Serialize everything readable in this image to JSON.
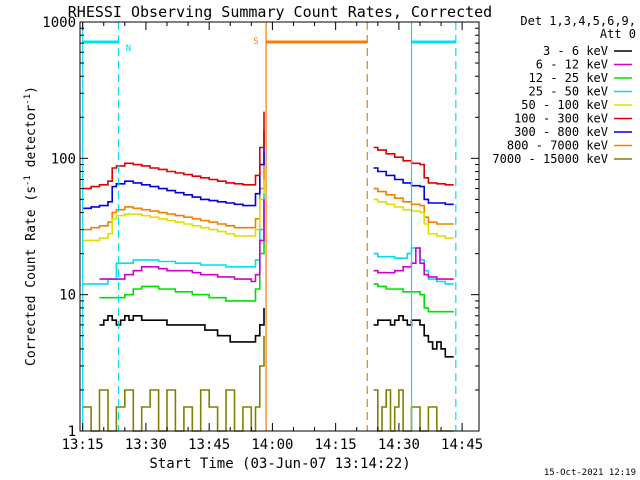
{
  "chart_data": {
    "type": "line",
    "title": "RHESSI Observing Summary Count Rates, Corrected",
    "xlabel": "Start Time (03-Jun-07 13:14:22)",
    "ylabel_main": "Corrected Count Rate (s",
    "ylabel_sup1": "-1",
    "ylabel_mid": " detector",
    "ylabel_sup2": "-1",
    "ylabel_end": ")",
    "yscale": "log",
    "ylim": [
      1,
      1000
    ],
    "xlim": [
      "13:14:22",
      "14:49:00"
    ],
    "xtick_labels": [
      "13:15",
      "13:30",
      "13:45",
      "14:00",
      "14:15",
      "14:30",
      "14:45"
    ],
    "xtick_minutes": [
      0,
      15,
      30,
      45,
      60,
      75,
      90
    ],
    "ytick_labels": [
      "1",
      "10",
      "100",
      "1000"
    ],
    "ytick_values": [
      1,
      10,
      100,
      1000
    ],
    "x_unit": "minutes after 13:15",
    "legend_header": [
      "Det 1,3,4,5,6,9,",
      "Att 0"
    ],
    "series": [
      {
        "name": "3 - 6 keV",
        "color": "#000000",
        "segments": [
          {
            "x": [
              4,
              5,
              6,
              7,
              8,
              9,
              10,
              11,
              12,
              14,
              17,
              20,
              23,
              26,
              29,
              32,
              35,
              38,
              40,
              41,
              42,
              43
            ],
            "y": [
              6,
              6.5,
              7,
              6.5,
              6,
              6.5,
              7,
              6.5,
              7,
              6.5,
              6.5,
              6,
              6,
              6,
              5.5,
              5,
              4.5,
              4.5,
              4.5,
              5,
              6,
              8
            ]
          },
          {
            "x": [
              69,
              70,
              71,
              72,
              73,
              74,
              75,
              76,
              77,
              78,
              80,
              81,
              82,
              83,
              84,
              85,
              86,
              87,
              88
            ],
            "y": [
              6,
              6.5,
              6.5,
              6.5,
              6,
              6.5,
              7,
              6.5,
              6,
              6.5,
              6,
              5,
              4.5,
              4,
              4.5,
              4,
              3.5,
              3.5,
              3.5
            ]
          }
        ]
      },
      {
        "name": "6 - 12 keV",
        "color": "#d000d0",
        "segments": [
          {
            "x": [
              4,
              6,
              8,
              10,
              12,
              14,
              16,
              18,
              20,
              22,
              24,
              26,
              28,
              30,
              32,
              34,
              36,
              38,
              40,
              41,
              42,
              43
            ],
            "y": [
              13,
              13,
              13,
              14,
              15,
              16,
              16,
              15.5,
              15,
              15,
              15,
              14.5,
              14,
              14,
              13.5,
              13.5,
              13,
              13,
              12.5,
              14,
              25,
              50
            ]
          },
          {
            "x": [
              69,
              70,
              72,
              74,
              76,
              78,
              79,
              80,
              81,
              82,
              84,
              86,
              88
            ],
            "y": [
              15,
              14.5,
              14.5,
              15,
              16,
              17,
              22,
              17,
              14,
              13.5,
              13,
              13,
              13
            ]
          }
        ]
      },
      {
        "name": "12 - 25 keV",
        "color": "#00e000",
        "segments": [
          {
            "x": [
              4,
              6,
              8,
              10,
              12,
              14,
              16,
              18,
              20,
              22,
              24,
              26,
              28,
              30,
              32,
              34,
              36,
              38,
              40,
              41,
              42,
              43
            ],
            "y": [
              9.5,
              9.5,
              9.5,
              10,
              11,
              11.5,
              11.5,
              11,
              11,
              10.5,
              10.5,
              10,
              10,
              9.5,
              9.5,
              9,
              9,
              9,
              9,
              11,
              20,
              45
            ]
          },
          {
            "x": [
              69,
              70,
              72,
              74,
              76,
              78,
              80,
              81,
              82,
              84,
              86,
              88
            ],
            "y": [
              12,
              11.5,
              11,
              11,
              10.5,
              10.5,
              10,
              8,
              7.5,
              7.5,
              7.5,
              7.5
            ]
          }
        ]
      },
      {
        "name": "25 - 50 keV",
        "color": "#00e0f0",
        "segments": [
          {
            "x": [
              0,
              2,
              4,
              6,
              8,
              10,
              12,
              14,
              16,
              18,
              20,
              22,
              24,
              26,
              28,
              30,
              32,
              34,
              36,
              38,
              40,
              41,
              42,
              43
            ],
            "y": [
              12,
              12,
              12,
              13,
              17,
              17,
              18,
              18,
              18,
              17.5,
              17.5,
              17,
              17,
              17,
              16.5,
              16.5,
              16.5,
              16,
              16,
              16,
              16,
              18,
              30,
              55
            ]
          },
          {
            "x": [
              69,
              70,
              72,
              74,
              76,
              77,
              78,
              80,
              81,
              82,
              84,
              86,
              88
            ],
            "y": [
              20,
              19,
              19,
              18.5,
              18.5,
              20,
              22,
              18,
              15,
              13,
              12.5,
              12,
              12
            ]
          }
        ]
      },
      {
        "name": "50 - 100 keV",
        "color": "#e0e000",
        "segments": [
          {
            "x": [
              0,
              2,
              4,
              6,
              7,
              8,
              10,
              12,
              14,
              16,
              18,
              20,
              22,
              24,
              26,
              28,
              30,
              32,
              34,
              36,
              38,
              40,
              41,
              42,
              43
            ],
            "y": [
              25,
              25,
              26,
              28,
              36,
              38,
              39,
              39,
              38,
              37,
              36,
              35,
              34,
              33,
              32,
              31,
              30,
              29,
              28,
              27,
              27,
              27,
              30,
              50,
              70
            ]
          },
          {
            "x": [
              69,
              70,
              72,
              74,
              76,
              78,
              80,
              81,
              82,
              84,
              86,
              88
            ],
            "y": [
              50,
              48,
              46,
              44,
              42,
              41,
              40,
              33,
              28,
              27,
              26,
              26
            ]
          }
        ]
      },
      {
        "name": "100 - 300 keV",
        "color": "#e00000",
        "segments": [
          {
            "x": [
              0,
              2,
              4,
              6,
              7,
              8,
              10,
              12,
              14,
              16,
              18,
              20,
              22,
              24,
              26,
              28,
              30,
              32,
              34,
              36,
              38,
              40,
              41,
              42,
              43
            ],
            "y": [
              60,
              62,
              64,
              68,
              85,
              88,
              92,
              90,
              88,
              85,
              83,
              80,
              78,
              76,
              74,
              72,
              70,
              68,
              66,
              65,
              64,
              64,
              75,
              120,
              220
            ]
          },
          {
            "x": [
              69,
              70,
              72,
              74,
              76,
              78,
              80,
              81,
              82,
              84,
              86,
              88
            ],
            "y": [
              120,
              115,
              108,
              102,
              96,
              92,
              90,
              72,
              66,
              65,
              64,
              64
            ]
          }
        ]
      },
      {
        "name": "300 - 800 keV",
        "color": "#0000e0",
        "segments": [
          {
            "x": [
              0,
              2,
              4,
              6,
              7,
              8,
              10,
              12,
              14,
              16,
              18,
              20,
              22,
              24,
              26,
              28,
              30,
              32,
              34,
              36,
              38,
              40,
              41,
              42,
              43
            ],
            "y": [
              43,
              44,
              45,
              48,
              62,
              65,
              68,
              66,
              64,
              62,
              60,
              58,
              56,
              54,
              52,
              50,
              49,
              48,
              47,
              46,
              45,
              45,
              55,
              90,
              160
            ]
          },
          {
            "x": [
              69,
              70,
              72,
              74,
              76,
              78,
              80,
              81,
              82,
              84,
              86,
              88
            ],
            "y": [
              85,
              80,
              75,
              70,
              66,
              63,
              62,
              50,
              47,
              47,
              46,
              46
            ]
          }
        ]
      },
      {
        "name": "800 - 7000 keV",
        "color": "#f08000",
        "segments": [
          {
            "x": [
              0,
              2,
              4,
              6,
              7,
              8,
              10,
              12,
              14,
              16,
              18,
              20,
              22,
              24,
              26,
              28,
              30,
              32,
              34,
              36,
              38,
              40,
              41,
              42,
              43
            ],
            "y": [
              30,
              31,
              32,
              34,
              40,
              42,
              44,
              43,
              42,
              41,
              40,
              39,
              38,
              37,
              36,
              35,
              34,
              33,
              32,
              31,
              31,
              31,
              36,
              60,
              110
            ]
          },
          {
            "x": [
              69,
              70,
              72,
              74,
              76,
              78,
              80,
              81,
              82,
              84,
              86,
              88
            ],
            "y": [
              60,
              57,
              54,
              51,
              48,
              46,
              45,
              37,
              34,
              33,
              33,
              33
            ]
          }
        ]
      },
      {
        "name": "7000 - 15000 keV",
        "color": "#808000",
        "segments": [
          {
            "x": [
              0,
              2,
              4,
              6,
              8,
              10,
              12,
              14,
              16,
              18,
              20,
              22,
              24,
              26,
              28,
              30,
              32,
              34,
              36,
              38,
              40,
              41,
              42,
              43
            ],
            "y": [
              1.5,
              1,
              2,
              1,
              1.5,
              2,
              1,
              1.5,
              2,
              1,
              2,
              1,
              1.5,
              1,
              2,
              1.5,
              1,
              2,
              1,
              1.5,
              1,
              1.5,
              3,
              5
            ]
          },
          {
            "x": [
              69,
              70,
              71,
              72,
              73,
              74,
              75,
              76,
              78,
              80,
              82,
              84,
              86,
              88
            ],
            "y": [
              2,
              1,
              1.5,
              2,
              1,
              1.5,
              2,
              1,
              1.5,
              1,
              1.5,
              1,
              1,
              1
            ]
          }
        ]
      }
    ],
    "attenuator_lines": [
      {
        "x": 0,
        "color": "#00e0f0",
        "style": "solid"
      },
      {
        "x": 8.5,
        "color": "#00e0f0",
        "style": "dashed"
      },
      {
        "x": 43.5,
        "color": "#f08000",
        "style": "solid"
      },
      {
        "x": 67.5,
        "color": "#f08000",
        "style": "dashed"
      },
      {
        "x": 78,
        "color": "#00e0f0",
        "style": "solid"
      },
      {
        "x": 88.5,
        "color": "#00e0f0",
        "style": "dashed"
      }
    ],
    "flag_bars": [
      {
        "x0": 0,
        "x1": 8.5,
        "color": "#00e0f0",
        "label": "N"
      },
      {
        "x0": 43.5,
        "x1": 67.5,
        "color": "#f08000",
        "label": "S"
      },
      {
        "x0": 78,
        "x1": 88.5,
        "color": "#00e0f0",
        "label": ""
      }
    ],
    "legend_placement": "right",
    "grid": false
  },
  "footer": {
    "date_stamp": "15-Oct-2021 12:19"
  }
}
